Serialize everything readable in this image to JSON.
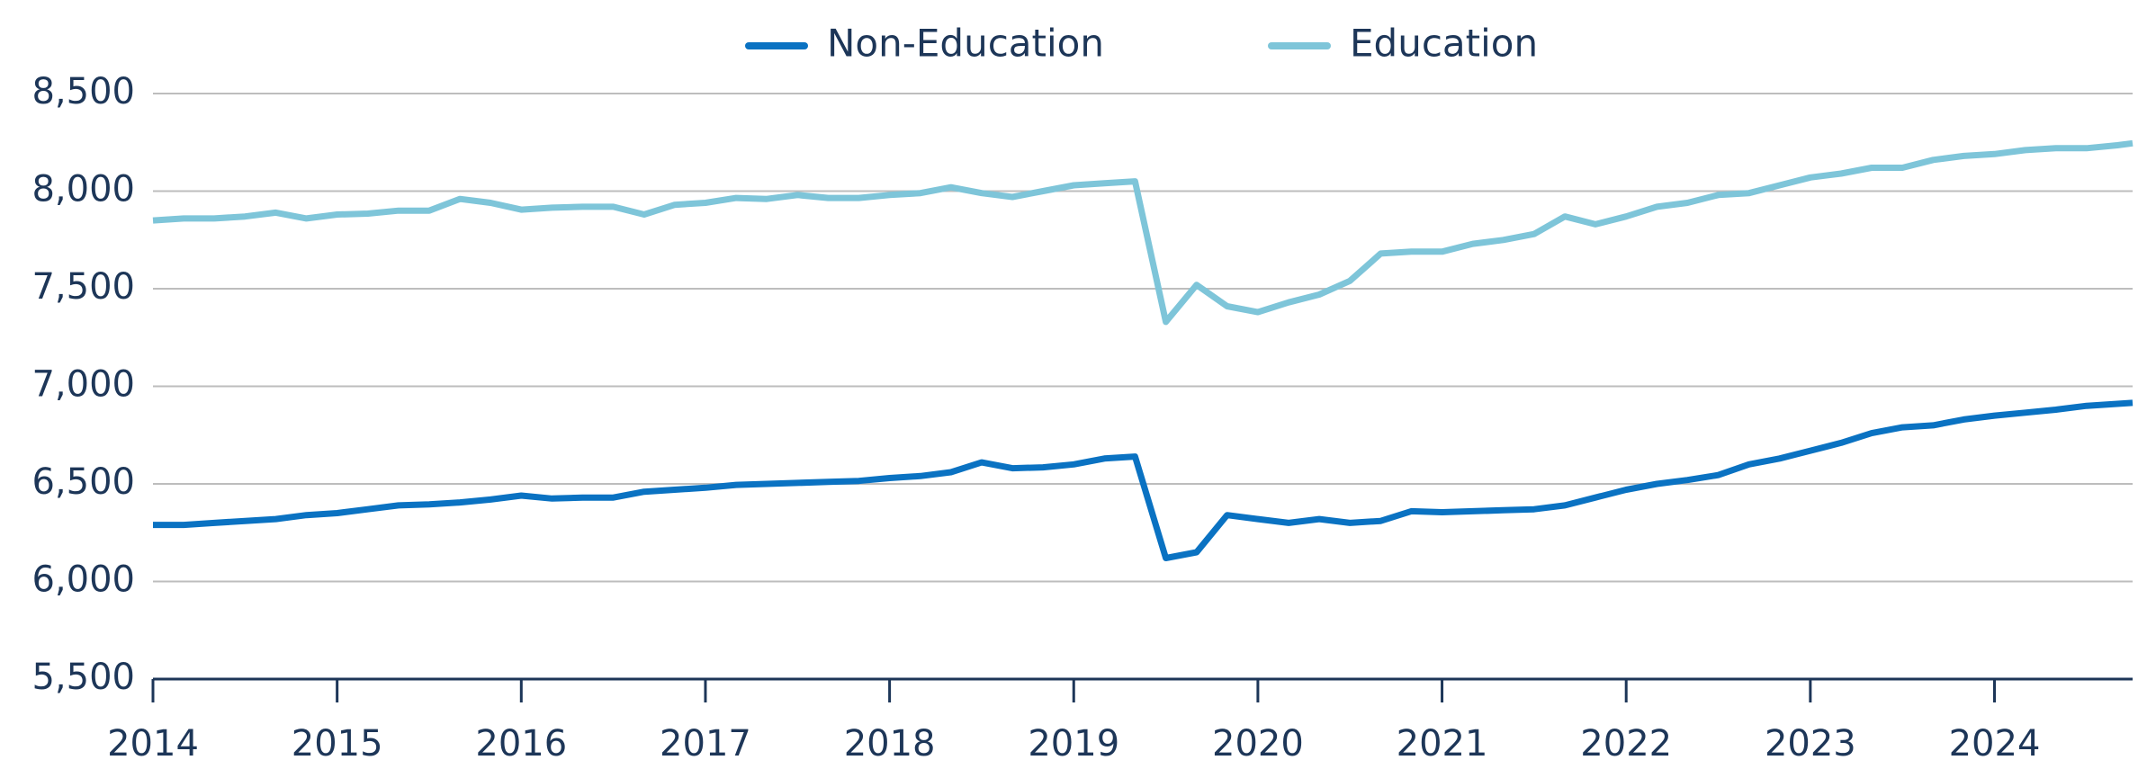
{
  "chart_data": {
    "type": "line",
    "x": [
      2014,
      2014.167,
      2014.333,
      2014.5,
      2014.667,
      2014.833,
      2015,
      2015.167,
      2015.333,
      2015.5,
      2015.667,
      2015.833,
      2016,
      2016.167,
      2016.333,
      2016.5,
      2016.667,
      2016.833,
      2017,
      2017.167,
      2017.333,
      2017.5,
      2017.667,
      2017.833,
      2018,
      2018.167,
      2018.333,
      2018.5,
      2018.667,
      2018.833,
      2019,
      2019.167,
      2019.333,
      2019.5,
      2019.667,
      2019.833,
      2020,
      2020.167,
      2020.333,
      2020.5,
      2020.667,
      2020.833,
      2021,
      2021.167,
      2021.333,
      2021.5,
      2021.667,
      2021.833,
      2022,
      2022.167,
      2022.333,
      2022.5,
      2022.667,
      2022.833,
      2023,
      2023.167,
      2023.333,
      2023.5,
      2023.667,
      2023.833,
      2024,
      2024.167,
      2024.333,
      2024.5,
      2024.667,
      2024.75
    ],
    "series": [
      {
        "name": "Non-Education",
        "color": "#0a72c2",
        "values": [
          6290,
          6290,
          6300,
          6310,
          6320,
          6340,
          6350,
          6370,
          6390,
          6395,
          6405,
          6420,
          6440,
          6425,
          6430,
          6430,
          6460,
          6470,
          6480,
          6495,
          6500,
          6505,
          6510,
          6515,
          6530,
          6540,
          6560,
          6610,
          6580,
          6585,
          6600,
          6630,
          6640,
          6120,
          6150,
          6340,
          6320,
          6300,
          6320,
          6300,
          6310,
          6360,
          6355,
          6360,
          6365,
          6370,
          6390,
          6430,
          6470,
          6500,
          6520,
          6545,
          6600,
          6630,
          6670,
          6710,
          6760,
          6790,
          6800,
          6830,
          6850,
          6865,
          6880,
          6900,
          6910,
          6915
        ]
      },
      {
        "name": "Education",
        "color": "#7ec5d9",
        "values": [
          7850,
          7860,
          7860,
          7870,
          7890,
          7860,
          7880,
          7885,
          7900,
          7900,
          7960,
          7940,
          7905,
          7915,
          7920,
          7920,
          7880,
          7930,
          7940,
          7965,
          7960,
          7980,
          7965,
          7965,
          7980,
          7990,
          8020,
          7990,
          7970,
          8000,
          8030,
          8040,
          8050,
          7330,
          7520,
          7410,
          7380,
          7430,
          7470,
          7540,
          7680,
          7690,
          7690,
          7730,
          7750,
          7780,
          7870,
          7830,
          7870,
          7920,
          7940,
          7980,
          7990,
          8030,
          8070,
          8090,
          8120,
          8120,
          8160,
          8180,
          8190,
          8210,
          8220,
          8220,
          8235,
          8245
        ]
      }
    ],
    "xlim": [
      2014,
      2024.75
    ],
    "xticks": [
      2014,
      2015,
      2016,
      2017,
      2018,
      2019,
      2020,
      2021,
      2022,
      2023,
      2024
    ],
    "ylim": [
      5500,
      8500
    ],
    "yticks": [
      {
        "value": 5500,
        "label": "5,500"
      },
      {
        "value": 6000,
        "label": "6,000"
      },
      {
        "value": 6500,
        "label": "6,500"
      },
      {
        "value": 7000,
        "label": "7,000"
      },
      {
        "value": 7500,
        "label": "7,500"
      },
      {
        "value": 8000,
        "label": "8,000"
      },
      {
        "value": 8500,
        "label": "8,500"
      }
    ],
    "grid": true
  }
}
